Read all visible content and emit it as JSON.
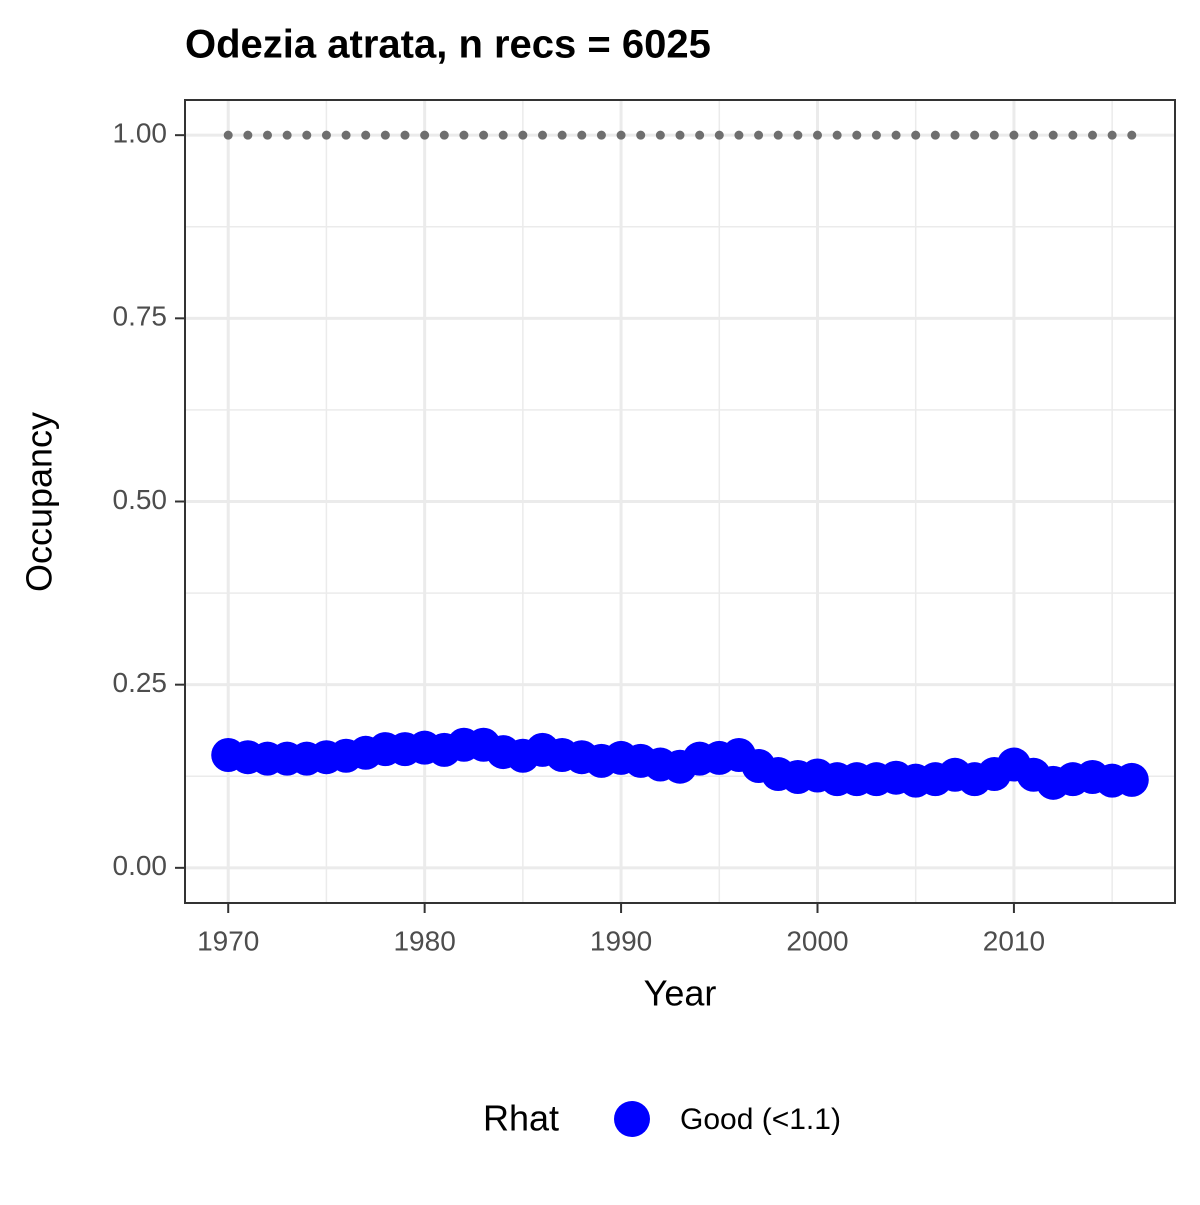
{
  "chart_data": {
    "type": "scatter",
    "title": "Odezia atrata, n recs = 6025",
    "x_label": "Year",
    "y_label": "Occupancy",
    "legend_title": "Rhat",
    "legend_position": "bottom",
    "grid": true,
    "x": [
      1970,
      1971,
      1972,
      1973,
      1974,
      1975,
      1976,
      1977,
      1978,
      1979,
      1980,
      1981,
      1982,
      1983,
      1984,
      1985,
      1986,
      1987,
      1988,
      1989,
      1990,
      1991,
      1992,
      1993,
      1994,
      1995,
      1996,
      1997,
      1998,
      1999,
      2000,
      2001,
      2002,
      2003,
      2004,
      2005,
      2006,
      2007,
      2008,
      2009,
      2010,
      2011,
      2012,
      2013,
      2014,
      2015,
      2016
    ],
    "series": [
      {
        "name": "Good (<1.1)",
        "color": "#0000ff",
        "style": "points-line",
        "values": [
          0.154,
          0.151,
          0.149,
          0.149,
          0.149,
          0.151,
          0.153,
          0.157,
          0.162,
          0.162,
          0.164,
          0.161,
          0.168,
          0.168,
          0.158,
          0.153,
          0.161,
          0.154,
          0.151,
          0.146,
          0.15,
          0.146,
          0.141,
          0.138,
          0.149,
          0.15,
          0.154,
          0.139,
          0.128,
          0.124,
          0.126,
          0.121,
          0.121,
          0.121,
          0.123,
          0.119,
          0.121,
          0.127,
          0.121,
          0.128,
          0.141,
          0.127,
          0.116,
          0.121,
          0.124,
          0.119,
          0.12
        ]
      },
      {
        "color": "#6e6e6e",
        "style": "dotted",
        "values": [
          1,
          1,
          1,
          1,
          1,
          1,
          1,
          1,
          1,
          1,
          1,
          1,
          1,
          1,
          1,
          1,
          1,
          1,
          1,
          1,
          1,
          1,
          1,
          1,
          1,
          1,
          1,
          1,
          1,
          1,
          1,
          1,
          1,
          1,
          1,
          1,
          1,
          1,
          1,
          1,
          1,
          1,
          1,
          1,
          1,
          1,
          1
        ]
      }
    ],
    "xlim": [
      1967.8,
      2018.2
    ],
    "ylim": [
      -0.048,
      1.048
    ],
    "xticks": [
      1970,
      1980,
      1990,
      2000,
      2010
    ],
    "yticks": [
      {
        "value": 0,
        "label": "0.00"
      },
      {
        "value": 0.25,
        "label": "0.25"
      },
      {
        "value": 0.5,
        "label": "0.50"
      },
      {
        "value": 0.75,
        "label": "0.75"
      },
      {
        "value": 1,
        "label": "1.00"
      }
    ],
    "minor_xticks": [
      1975,
      1985,
      1995,
      2005,
      2015
    ],
    "minor_yticks": [
      0.125,
      0.375,
      0.625,
      0.875
    ]
  }
}
